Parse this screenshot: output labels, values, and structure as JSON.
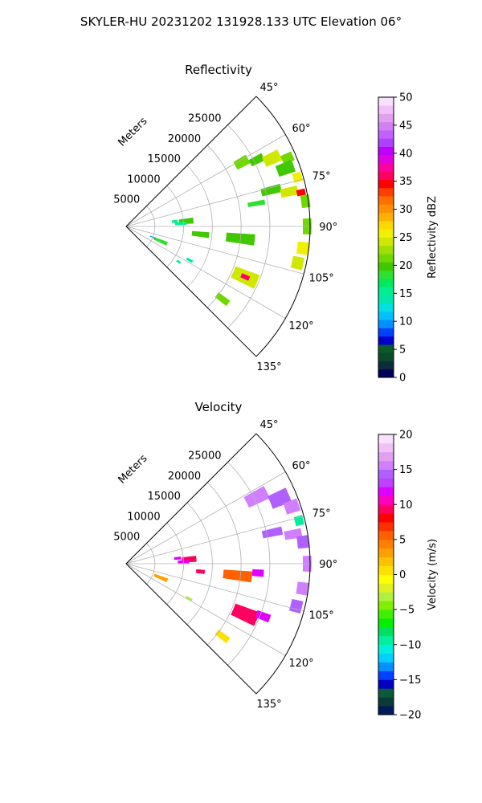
{
  "figure": {
    "title": "SKYLER-HU  20231202  131928.133 UTC Elevation 06°"
  },
  "chart_data": [
    {
      "type": "heatmap",
      "subtype": "polar-sector",
      "title": "Reflectivity",
      "range_label": "Meters",
      "range_ticks": [
        5000,
        10000,
        15000,
        20000,
        25000
      ],
      "range_tick_labels": [
        "5000",
        "10000",
        "15000",
        "20000",
        "25000"
      ],
      "rmax": 32000,
      "azimuth_range": [
        45,
        135
      ],
      "azimuth_ticks": [
        45,
        60,
        75,
        90,
        105,
        120,
        135
      ],
      "azimuth_tick_labels": [
        "45°",
        "60°",
        "75°",
        "90°",
        "105°",
        "120°",
        "135°"
      ],
      "grid": true,
      "colorbar": {
        "label": "Reflectivity dBZ",
        "min": 0,
        "max": 50,
        "ticks": [
          0,
          5,
          10,
          15,
          20,
          25,
          30,
          35,
          40,
          45,
          50
        ],
        "tick_labels": [
          "0",
          "5",
          "10",
          "15",
          "20",
          "25",
          "30",
          "35",
          "40",
          "45",
          "50"
        ],
        "colors": [
          "#00005a",
          "#0b2e3a",
          "#0b4a2a",
          "#0a5a2a",
          "#0000d0",
          "#0040ff",
          "#0090ff",
          "#00c0ff",
          "#00e0e0",
          "#00e8b0",
          "#00f090",
          "#00e860",
          "#30e030",
          "#40c800",
          "#70d800",
          "#a0e000",
          "#d0e800",
          "#f0f000",
          "#ffd800",
          "#ffb000",
          "#ff9000",
          "#ff7000",
          "#ff4000",
          "#ff0000",
          "#ff0060",
          "#ff00a0",
          "#e000e0",
          "#c000ff",
          "#b040ff",
          "#c060ff",
          "#d080f0",
          "#e0a0f0",
          "#f0c0f8",
          "#f8e0ff"
        ]
      },
      "cells": [
        {
          "az": 61,
          "r": 23000,
          "daz": 4,
          "dr": 2500,
          "value": 22
        },
        {
          "az": 63,
          "r": 25500,
          "daz": 3,
          "dr": 2500,
          "value": 20
        },
        {
          "az": 65,
          "r": 28000,
          "daz": 4,
          "dr": 3000,
          "value": 24
        },
        {
          "az": 67,
          "r": 30500,
          "daz": 3,
          "dr": 2000,
          "value": 22
        },
        {
          "az": 70,
          "r": 29500,
          "daz": 4,
          "dr": 3000,
          "value": 20
        },
        {
          "az": 74,
          "r": 31000,
          "daz": 3,
          "dr": 1500,
          "value": 26
        },
        {
          "az": 76,
          "r": 26000,
          "daz": 3,
          "dr": 3500,
          "value": 20
        },
        {
          "az": 78,
          "r": 29000,
          "daz": 3,
          "dr": 3000,
          "value": 24
        },
        {
          "az": 79,
          "r": 31000,
          "daz": 2,
          "dr": 1500,
          "value": 34
        },
        {
          "az": 80,
          "r": 23000,
          "daz": 2,
          "dr": 3000,
          "value": 18
        },
        {
          "az": 82,
          "r": 31500,
          "daz": 4,
          "dr": 1500,
          "value": 22
        },
        {
          "az": 84,
          "r": 8500,
          "daz": 3,
          "dr": 1000,
          "value": 16
        },
        {
          "az": 85,
          "r": 10500,
          "daz": 5,
          "dr": 2500,
          "value": 20
        },
        {
          "az": 87,
          "r": 9500,
          "daz": 3,
          "dr": 2000,
          "value": 16
        },
        {
          "az": 90,
          "r": 31500,
          "daz": 5,
          "dr": 1500,
          "value": 22
        },
        {
          "az": 96,
          "r": 13000,
          "daz": 4,
          "dr": 3000,
          "value": 20
        },
        {
          "az": 96,
          "r": 20000,
          "daz": 5,
          "dr": 5000,
          "value": 20
        },
        {
          "az": 97,
          "r": 31000,
          "daz": 4,
          "dr": 2000,
          "value": 26
        },
        {
          "az": 102,
          "r": 30500,
          "daz": 4,
          "dr": 2000,
          "value": 24
        },
        {
          "az": 113,
          "r": 6500,
          "daz": 5,
          "dr": 2500,
          "value": 18
        },
        {
          "az": 112,
          "r": 5000,
          "daz": 2,
          "dr": 1000,
          "value": 10
        },
        {
          "az": 118,
          "r": 12500,
          "daz": 2,
          "dr": 1200,
          "value": 14
        },
        {
          "az": 113,
          "r": 22500,
          "daz": 6,
          "dr": 4500,
          "value": 24
        },
        {
          "az": 113,
          "r": 22500,
          "daz": 2,
          "dr": 1500,
          "value": 36
        },
        {
          "az": 124,
          "r": 11000,
          "daz": 2,
          "dr": 800,
          "value": 16
        },
        {
          "az": 127,
          "r": 21000,
          "daz": 3,
          "dr": 2500,
          "value": 22
        }
      ]
    },
    {
      "type": "heatmap",
      "subtype": "polar-sector",
      "title": "Velocity",
      "range_label": "Meters",
      "range_ticks": [
        5000,
        10000,
        15000,
        20000,
        25000
      ],
      "range_tick_labels": [
        "5000",
        "10000",
        "15000",
        "20000",
        "25000"
      ],
      "rmax": 32000,
      "azimuth_range": [
        45,
        135
      ],
      "azimuth_ticks": [
        45,
        60,
        75,
        90,
        105,
        120,
        135
      ],
      "azimuth_tick_labels": [
        "45°",
        "60°",
        "75°",
        "90°",
        "105°",
        "120°",
        "135°"
      ],
      "grid": true,
      "colorbar": {
        "label": "Velocity (m/s)",
        "min": -20,
        "max": 20,
        "ticks": [
          -20,
          -15,
          -10,
          -5,
          0,
          5,
          10,
          15,
          20
        ],
        "tick_labels": [
          "−20",
          "−15",
          "−10",
          "−5",
          "0",
          "5",
          "10",
          "15",
          "20"
        ],
        "colors": [
          "#001a5a",
          "#0b3a3a",
          "#0b5a3a",
          "#0000c0",
          "#0040ff",
          "#0090ff",
          "#00d0ff",
          "#00f0e0",
          "#00f0a0",
          "#00e060",
          "#00f000",
          "#40f000",
          "#80f000",
          "#b0f040",
          "#e0f020",
          "#ffff00",
          "#ffe000",
          "#ffc000",
          "#ffa000",
          "#ff8000",
          "#ff6000",
          "#ff3000",
          "#ff0000",
          "#ff0060",
          "#ff00c0",
          "#e000ff",
          "#c040ff",
          "#b060ff",
          "#d080ff",
          "#e0a0f0",
          "#f0c0f8",
          "#f8e0ff"
        ]
      },
      "cells": [
        {
          "az": 63,
          "r": 25500,
          "daz": 5,
          "dr": 4000,
          "value": 15
        },
        {
          "az": 67,
          "r": 29000,
          "daz": 5,
          "dr": 3500,
          "value": 14
        },
        {
          "az": 71,
          "r": 30500,
          "daz": 4,
          "dr": 2500,
          "value": 15
        },
        {
          "az": 76,
          "r": 31000,
          "daz": 3,
          "dr": 1500,
          "value": -10
        },
        {
          "az": 78,
          "r": 26000,
          "daz": 3,
          "dr": 3500,
          "value": 14
        },
        {
          "az": 80,
          "r": 29500,
          "daz": 3,
          "dr": 3000,
          "value": 15
        },
        {
          "az": 83,
          "r": 31000,
          "daz": 4,
          "dr": 2000,
          "value": 14
        },
        {
          "az": 84,
          "r": 9000,
          "daz": 3,
          "dr": 1200,
          "value": 12
        },
        {
          "az": 86,
          "r": 11000,
          "daz": 5,
          "dr": 2500,
          "value": 9
        },
        {
          "az": 88,
          "r": 10000,
          "daz": 3,
          "dr": 2000,
          "value": 12
        },
        {
          "az": 90,
          "r": 31500,
          "daz": 5,
          "dr": 1500,
          "value": 15
        },
        {
          "az": 96,
          "r": 13000,
          "daz": 3,
          "dr": 1500,
          "value": 9
        },
        {
          "az": 96,
          "r": 19500,
          "daz": 5,
          "dr": 5000,
          "value": 6
        },
        {
          "az": 94,
          "r": 23000,
          "daz": 3,
          "dr": 2000,
          "value": 12
        },
        {
          "az": 98,
          "r": 31000,
          "daz": 4,
          "dr": 2000,
          "value": 15
        },
        {
          "az": 104,
          "r": 30500,
          "daz": 4,
          "dr": 2000,
          "value": 14
        },
        {
          "az": 112,
          "r": 6500,
          "daz": 5,
          "dr": 2500,
          "value": 3
        },
        {
          "az": 119,
          "r": 12500,
          "daz": 2,
          "dr": 1200,
          "value": -3
        },
        {
          "az": 113,
          "r": 22500,
          "daz": 6,
          "dr": 4500,
          "value": 9
        },
        {
          "az": 111,
          "r": 25500,
          "daz": 3,
          "dr": 2500,
          "value": 12
        },
        {
          "az": 127,
          "r": 21000,
          "daz": 3,
          "dr": 2500,
          "value": 1
        }
      ]
    }
  ]
}
